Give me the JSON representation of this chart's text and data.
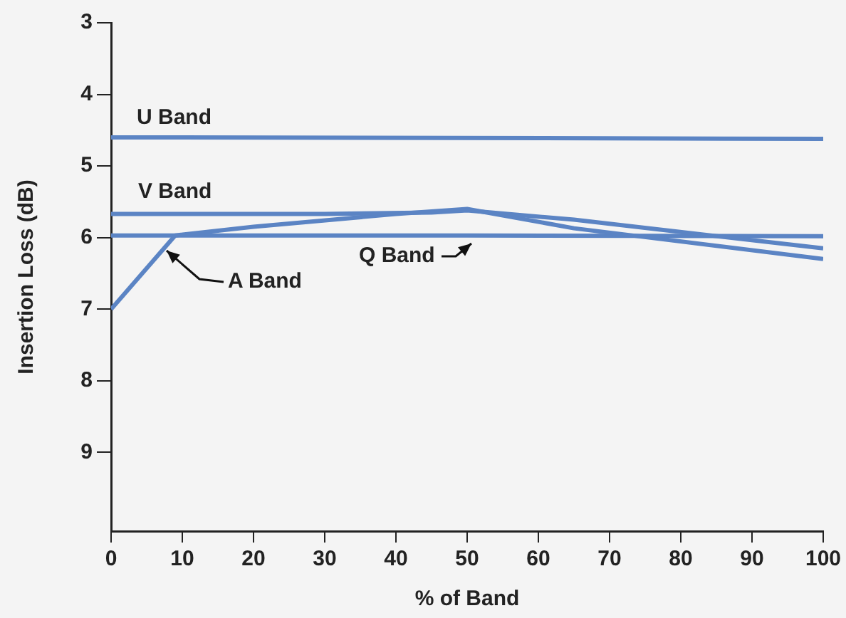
{
  "chart_data": {
    "type": "line",
    "xlabel": "% of Band",
    "ylabel": "Insertion Loss (dB)",
    "xlim": [
      0,
      100
    ],
    "xticks": [
      0,
      10,
      20,
      30,
      40,
      50,
      60,
      70,
      80,
      90,
      100
    ],
    "ylim": [
      10.1,
      3
    ],
    "yticks": [
      3,
      4,
      5,
      6,
      7,
      8,
      9
    ],
    "grid": false,
    "legend": false,
    "marker": "none",
    "line_style": "solid",
    "series": [
      {
        "name": "U Band",
        "color": "#5b84c4",
        "x": [
          0,
          100
        ],
        "values": [
          4.6,
          4.62
        ]
      },
      {
        "name": "V Band",
        "color": "#5b84c4",
        "x": [
          0,
          30,
          45,
          50,
          65,
          100
        ],
        "values": [
          5.67,
          5.67,
          5.65,
          5.62,
          5.75,
          6.15
        ]
      },
      {
        "name": "A Band",
        "color": "#5b84c4",
        "x": [
          0,
          9,
          20,
          40,
          50,
          65,
          100
        ],
        "values": [
          7,
          5.97,
          5.85,
          5.67,
          5.6,
          5.87,
          6.3
        ]
      },
      {
        "name": "Q Band",
        "color": "#5b84c4",
        "x": [
          0,
          50,
          100
        ],
        "values": [
          5.97,
          5.97,
          5.98
        ]
      }
    ]
  }
}
